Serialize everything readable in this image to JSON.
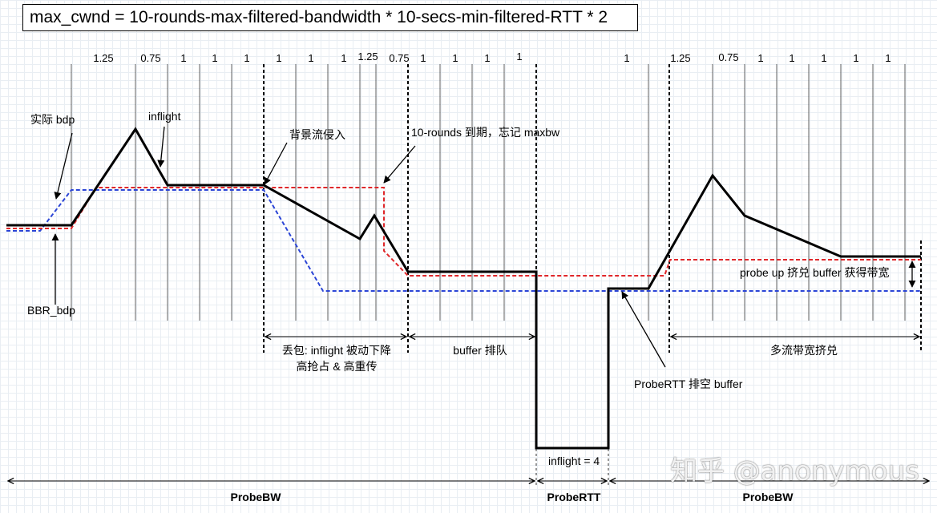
{
  "title": "max_cwnd = 10-rounds-max-filtered-bandwidth * 10-secs-min-filtered-RTT * 2",
  "gains": [
    {
      "id": "g1",
      "text": "1.25"
    },
    {
      "id": "g2",
      "text": "0.75"
    },
    {
      "id": "g3",
      "text": "1"
    },
    {
      "id": "g4",
      "text": "1"
    },
    {
      "id": "g5",
      "text": "1"
    },
    {
      "id": "g6",
      "text": "1"
    },
    {
      "id": "g7",
      "text": "1"
    },
    {
      "id": "g8",
      "text": "1"
    },
    {
      "id": "g9",
      "text": "1.25"
    },
    {
      "id": "g10",
      "text": "0.75"
    },
    {
      "id": "g11",
      "text": "1"
    },
    {
      "id": "g12",
      "text": "1"
    },
    {
      "id": "g13",
      "text": "1"
    },
    {
      "id": "g14",
      "text": "1"
    },
    {
      "id": "g15",
      "text": "1"
    },
    {
      "id": "g16",
      "text": "1.25"
    },
    {
      "id": "g17",
      "text": "0.75"
    },
    {
      "id": "g18",
      "text": "1"
    },
    {
      "id": "g19",
      "text": "1"
    },
    {
      "id": "g20",
      "text": "1"
    },
    {
      "id": "g21",
      "text": "1"
    },
    {
      "id": "g22",
      "text": "1"
    }
  ],
  "labels": {
    "actual_bdp": "实际 bdp",
    "inflight": "inflight",
    "bbr_bdp": "BBR_bdp",
    "background_flow": "背景流侵入",
    "rounds_expire": "10-rounds 到期，忘记 maxbw",
    "loss_line1": "丢包: inflight 被动下降",
    "loss_line2": "高抢占 & 高重传",
    "buffer_queue": "buffer 排队",
    "probe_up": "probe up 挤兑 buffer 获得带宽",
    "multi_flow": "多流带宽挤兑",
    "probertt_drain": "ProbeRTT 排空 buffer",
    "inflight4": "inflight = 4"
  },
  "phases": {
    "probebw_left": "ProbeBW",
    "probertt": "ProbeRTT",
    "probebw_right": "ProbeBW"
  },
  "watermark": "知乎 @anonymous",
  "colors": {
    "inflight": "#000000",
    "maxbw": "#e0272a",
    "bdp": "#2b45d6",
    "grid": "#e9eef3"
  }
}
